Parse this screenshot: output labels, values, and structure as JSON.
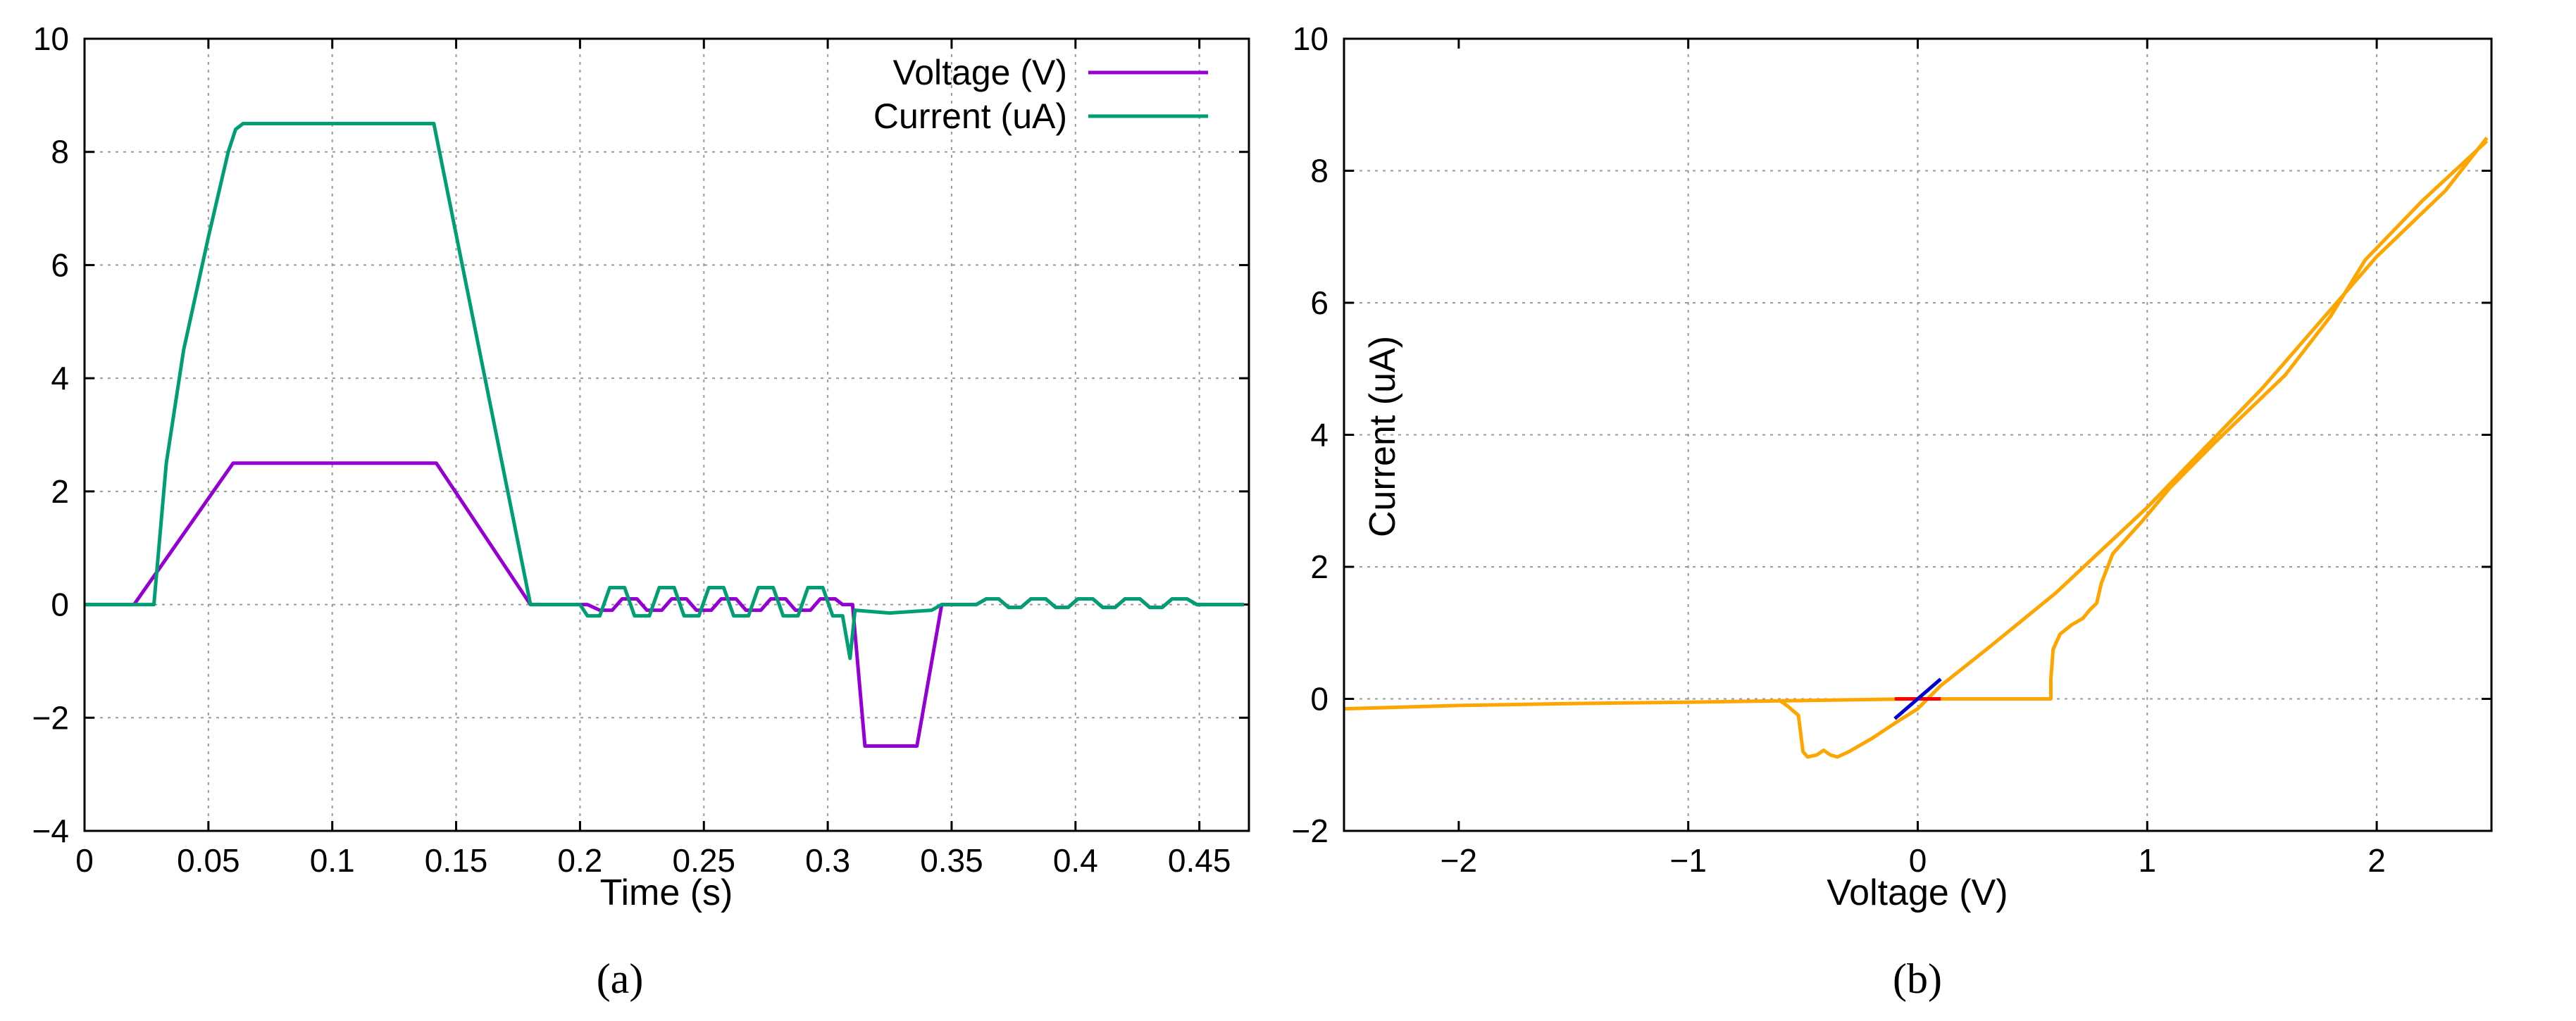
{
  "chart_data": [
    {
      "type": "line",
      "title": "",
      "xlabel": "Time (s)",
      "ylabel": "",
      "xlim": [
        0,
        0.47
      ],
      "ylim": [
        -4,
        10
      ],
      "xticks": [
        "0",
        "0.05",
        "0.1",
        "0.15",
        "0.2",
        "0.25",
        "0.3",
        "0.35",
        "0.4",
        "0.45"
      ],
      "yticks": [
        "−4",
        "−2",
        "0",
        "2",
        "4",
        "6",
        "8",
        "10"
      ],
      "grid": true,
      "legend_position": "top-right",
      "caption": "(a)",
      "series": [
        {
          "name": "Voltage (V)",
          "color": "#9400d3",
          "points": [
            [
              0,
              0
            ],
            [
              0.02,
              0
            ],
            [
              0.06,
              2.5
            ],
            [
              0.142,
              2.5
            ],
            [
              0.18,
              0
            ],
            [
              0.203,
              0
            ],
            [
              0.208,
              -0.1
            ],
            [
              0.213,
              -0.1
            ],
            [
              0.217,
              0.1
            ],
            [
              0.223,
              0.1
            ],
            [
              0.227,
              -0.1
            ],
            [
              0.233,
              -0.1
            ],
            [
              0.237,
              0.1
            ],
            [
              0.243,
              0.1
            ],
            [
              0.247,
              -0.1
            ],
            [
              0.253,
              -0.1
            ],
            [
              0.257,
              0.1
            ],
            [
              0.263,
              0.1
            ],
            [
              0.267,
              -0.1
            ],
            [
              0.273,
              -0.1
            ],
            [
              0.277,
              0.1
            ],
            [
              0.283,
              0.1
            ],
            [
              0.287,
              -0.1
            ],
            [
              0.293,
              -0.1
            ],
            [
              0.297,
              0.1
            ],
            [
              0.303,
              0.1
            ],
            [
              0.306,
              0
            ],
            [
              0.31,
              0
            ],
            [
              0.315,
              -2.5
            ],
            [
              0.336,
              -2.5
            ],
            [
              0.346,
              0
            ],
            [
              0.36,
              0
            ],
            [
              0.364,
              0.1
            ],
            [
              0.369,
              0.1
            ],
            [
              0.373,
              -0.05
            ],
            [
              0.378,
              -0.05
            ],
            [
              0.382,
              0.1
            ],
            [
              0.388,
              0.1
            ],
            [
              0.392,
              -0.05
            ],
            [
              0.397,
              -0.05
            ],
            [
              0.401,
              0.1
            ],
            [
              0.407,
              0.1
            ],
            [
              0.411,
              -0.05
            ],
            [
              0.416,
              -0.05
            ],
            [
              0.42,
              0.1
            ],
            [
              0.426,
              0.1
            ],
            [
              0.43,
              -0.05
            ],
            [
              0.435,
              -0.05
            ],
            [
              0.439,
              0.1
            ],
            [
              0.445,
              0.1
            ],
            [
              0.449,
              0
            ],
            [
              0.468,
              0
            ]
          ]
        },
        {
          "name": "Current (uA)",
          "color": "#009e73",
          "points": [
            [
              0,
              0
            ],
            [
              0.028,
              0
            ],
            [
              0.029,
              0.5
            ],
            [
              0.03,
              1
            ],
            [
              0.033,
              2.5
            ],
            [
              0.04,
              4.5
            ],
            [
              0.05,
              6.5
            ],
            [
              0.058,
              8
            ],
            [
              0.061,
              8.4
            ],
            [
              0.064,
              8.5
            ],
            [
              0.1,
              8.5
            ],
            [
              0.141,
              8.5
            ],
            [
              0.18,
              0
            ],
            [
              0.2,
              0
            ],
            [
              0.203,
              -0.2
            ],
            [
              0.208,
              -0.2
            ],
            [
              0.212,
              0.3
            ],
            [
              0.218,
              0.3
            ],
            [
              0.222,
              -0.2
            ],
            [
              0.228,
              -0.2
            ],
            [
              0.232,
              0.3
            ],
            [
              0.238,
              0.3
            ],
            [
              0.242,
              -0.2
            ],
            [
              0.248,
              -0.2
            ],
            [
              0.252,
              0.3
            ],
            [
              0.258,
              0.3
            ],
            [
              0.262,
              -0.2
            ],
            [
              0.268,
              -0.2
            ],
            [
              0.272,
              0.3
            ],
            [
              0.278,
              0.3
            ],
            [
              0.282,
              -0.2
            ],
            [
              0.288,
              -0.2
            ],
            [
              0.292,
              0.3
            ],
            [
              0.298,
              0.3
            ],
            [
              0.302,
              -0.2
            ],
            [
              0.306,
              -0.2
            ],
            [
              0.309,
              -0.95
            ],
            [
              0.311,
              -0.1
            ],
            [
              0.325,
              -0.15
            ],
            [
              0.342,
              -0.1
            ],
            [
              0.346,
              0
            ],
            [
              0.36,
              0
            ],
            [
              0.364,
              0.1
            ],
            [
              0.369,
              0.1
            ],
            [
              0.373,
              -0.05
            ],
            [
              0.378,
              -0.05
            ],
            [
              0.382,
              0.1
            ],
            [
              0.388,
              0.1
            ],
            [
              0.392,
              -0.05
            ],
            [
              0.397,
              -0.05
            ],
            [
              0.401,
              0.1
            ],
            [
              0.407,
              0.1
            ],
            [
              0.411,
              -0.05
            ],
            [
              0.416,
              -0.05
            ],
            [
              0.42,
              0.1
            ],
            [
              0.426,
              0.1
            ],
            [
              0.43,
              -0.05
            ],
            [
              0.435,
              -0.05
            ],
            [
              0.439,
              0.1
            ],
            [
              0.445,
              0.1
            ],
            [
              0.449,
              0
            ],
            [
              0.468,
              0
            ]
          ]
        }
      ]
    },
    {
      "type": "line",
      "title": "",
      "xlabel": "Voltage (V)",
      "ylabel": "Current (uA)",
      "xlim": [
        -2.5,
        2.5
      ],
      "ylim": [
        -2,
        10
      ],
      "xticks": [
        "−2",
        "−1",
        "0",
        "1",
        "2"
      ],
      "yticks": [
        "−2",
        "0",
        "2",
        "4",
        "6",
        "8",
        "10"
      ],
      "grid": true,
      "caption": "(b)",
      "series": [
        {
          "color": "#ffa500",
          "points": [
            [
              -2.5,
              -0.15
            ],
            [
              -2,
              -0.1
            ],
            [
              -1.5,
              -0.07
            ],
            [
              -1,
              -0.05
            ],
            [
              -0.6,
              -0.03
            ],
            [
              -0.57,
              -0.1
            ],
            [
              -0.52,
              -0.25
            ],
            [
              -0.5,
              -0.8
            ],
            [
              -0.48,
              -0.88
            ],
            [
              -0.44,
              -0.85
            ],
            [
              -0.41,
              -0.78
            ],
            [
              -0.38,
              -0.85
            ],
            [
              -0.35,
              -0.88
            ],
            [
              -0.3,
              -0.8
            ],
            [
              -0.2,
              -0.6
            ],
            [
              -0.1,
              -0.37
            ],
            [
              0,
              -0.15
            ],
            [
              0.1,
              0.2
            ],
            [
              0.3,
              0.75
            ],
            [
              0.6,
              1.6
            ],
            [
              1,
              2.9
            ],
            [
              1.5,
              4.7
            ],
            [
              2,
              6.7
            ],
            [
              2.3,
              7.7
            ],
            [
              2.48,
              8.5
            ]
          ]
        },
        {
          "color": "#ffa500",
          "points": [
            [
              2.48,
              8.45
            ],
            [
              2.2,
              7.55
            ],
            [
              1.95,
              6.65
            ],
            [
              1.8,
              5.8
            ],
            [
              1.6,
              4.9
            ],
            [
              1.3,
              3.9
            ],
            [
              1.1,
              3.2
            ],
            [
              0.98,
              2.7
            ],
            [
              0.85,
              2.2
            ],
            [
              0.8,
              1.75
            ],
            [
              0.78,
              1.45
            ],
            [
              0.75,
              1.35
            ],
            [
              0.72,
              1.22
            ],
            [
              0.67,
              1.12
            ],
            [
              0.62,
              0.98
            ],
            [
              0.59,
              0.75
            ],
            [
              0.58,
              0.3
            ],
            [
              0.58,
              0
            ],
            [
              0.3,
              0
            ],
            [
              0,
              0
            ],
            [
              -0.6,
              -0.03
            ]
          ]
        },
        {
          "color": "#ff0000",
          "points": [
            [
              -0.1,
              0
            ],
            [
              0.1,
              0
            ]
          ]
        },
        {
          "color": "#0000cd",
          "points": [
            [
              -0.1,
              -0.3
            ],
            [
              0.1,
              0.3
            ]
          ]
        }
      ]
    }
  ]
}
